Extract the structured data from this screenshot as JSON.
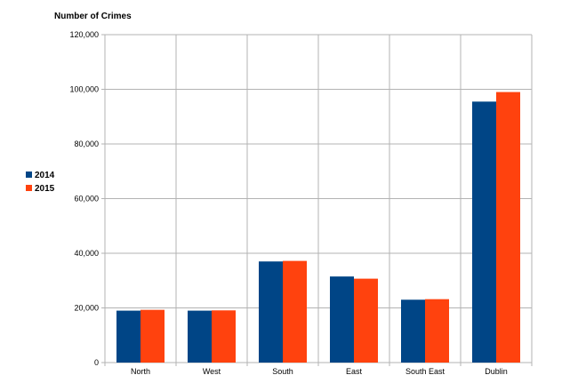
{
  "chart_data": {
    "type": "bar",
    "title": "",
    "ylabel": "Number of Crimes",
    "xlabel": "",
    "categories": [
      "North",
      "West",
      "South",
      "East",
      "South East",
      "Dublin"
    ],
    "series": [
      {
        "name": "2014",
        "color": "#004586",
        "values": [
          19000,
          19000,
          37000,
          31500,
          23000,
          95500
        ]
      },
      {
        "name": "2015",
        "color": "#ff420e",
        "values": [
          19300,
          19100,
          37200,
          30700,
          23200,
          99000
        ]
      }
    ],
    "ylim": [
      0,
      120000
    ],
    "yticks": [
      0,
      20000,
      40000,
      60000,
      80000,
      100000,
      120000
    ],
    "ytick_labels": [
      "0",
      "20,000",
      "40,000",
      "60,000",
      "80,000",
      "100,000",
      "120,000"
    ],
    "grid": true,
    "legend_position": "left"
  }
}
